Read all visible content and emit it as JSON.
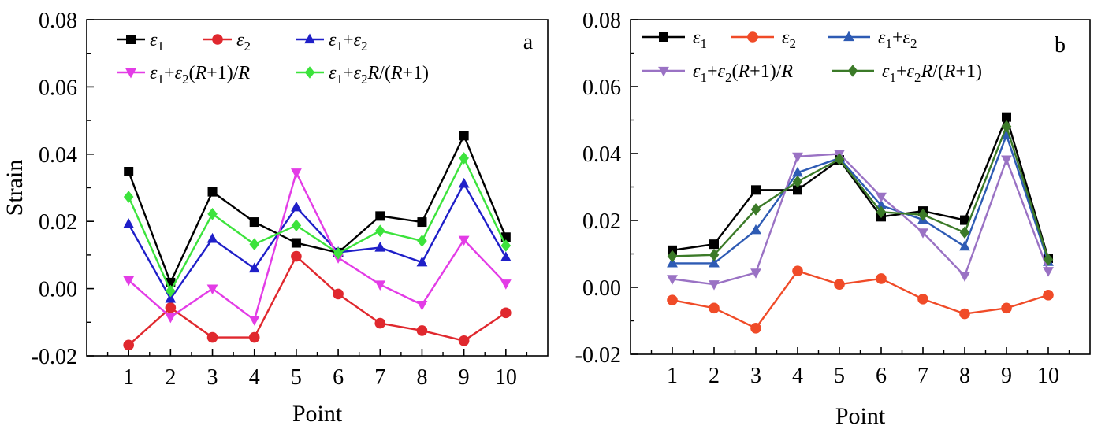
{
  "chart_data": [
    {
      "type": "line",
      "panel_label": "a",
      "xlabel": "Point",
      "ylabel": "Strain",
      "ylim": [
        -0.02,
        0.08
      ],
      "x": [
        1,
        2,
        3,
        4,
        5,
        6,
        7,
        8,
        9,
        10
      ],
      "x_tick_labels": [
        "1",
        "2",
        "3",
        "4",
        "5",
        "6",
        "7",
        "8",
        "9",
        "10"
      ],
      "y_ticks": [
        -0.02,
        0.0,
        0.02,
        0.04,
        0.06,
        0.08
      ],
      "y_tick_labels": [
        "-0.02",
        "0.00",
        "0.02",
        "0.04",
        "0.06",
        "0.08"
      ],
      "legend_position": "top-left",
      "series": [
        {
          "name": "ε1",
          "color": "#000000",
          "marker": "square",
          "legend": {
            "base": "ε",
            "sub": "1",
            "tail": ""
          },
          "values": [
            0.0348,
            0.0018,
            0.0288,
            0.0198,
            0.0136,
            0.0107,
            0.0216,
            0.0198,
            0.0455,
            0.0153
          ]
        },
        {
          "name": "ε2",
          "color": "#e0282e",
          "marker": "circle",
          "legend": {
            "base": "ε",
            "sub": "2",
            "tail": ""
          },
          "values": [
            -0.0168,
            -0.0057,
            -0.0145,
            -0.0145,
            0.0096,
            -0.0016,
            -0.0103,
            -0.0125,
            -0.0155,
            -0.0072
          ]
        },
        {
          "name": "ε1+ε2",
          "color": "#1f1fc8",
          "marker": "triangle-up",
          "legend": {
            "base": "ε",
            "sub": "1",
            "tail": "+ε",
            "sub2": "2",
            "tail2": ""
          },
          "values": [
            0.0192,
            -0.003,
            0.0148,
            0.006,
            0.0242,
            0.0108,
            0.0122,
            0.0078,
            0.0312,
            0.0093
          ]
        },
        {
          "name": "ε1+ε2(R+1)/R",
          "color": "#e33ce6",
          "marker": "triangle-down",
          "legend": {
            "base": "ε",
            "sub": "1",
            "tail": "+ε",
            "sub2": "2",
            "tail2": "(R+1)/R"
          },
          "values": [
            0.0025,
            -0.0085,
            0.0,
            -0.0093,
            0.0345,
            0.0092,
            0.0012,
            -0.0048,
            0.0145,
            0.0015
          ]
        },
        {
          "name": "ε1+ε2R/(R+1)",
          "color": "#3ce33c",
          "marker": "diamond",
          "legend": {
            "base": "ε",
            "sub": "1",
            "tail": "+ε",
            "sub2": "2",
            "tail2": "R/(R+1)"
          },
          "values": [
            0.0273,
            -0.0007,
            0.0222,
            0.0132,
            0.0188,
            0.0105,
            0.0172,
            0.0142,
            0.0388,
            0.0128
          ]
        }
      ]
    },
    {
      "type": "line",
      "panel_label": "b",
      "xlabel": "Point",
      "ylabel": "",
      "ylim": [
        -0.02,
        0.08
      ],
      "x": [
        1,
        2,
        3,
        4,
        5,
        6,
        7,
        8,
        9,
        10
      ],
      "x_tick_labels": [
        "1",
        "2",
        "3",
        "4",
        "5",
        "6",
        "7",
        "8",
        "9",
        "10"
      ],
      "y_ticks": [
        -0.02,
        0.0,
        0.02,
        0.04,
        0.06,
        0.08
      ],
      "y_tick_labels": [
        "-0.02",
        "0.00",
        "0.02",
        "0.04",
        "0.06",
        "0.08"
      ],
      "legend_position": "top-left",
      "series": [
        {
          "name": "ε1",
          "color": "#000000",
          "marker": "square",
          "legend": {
            "base": "ε",
            "sub": "1",
            "tail": ""
          },
          "values": [
            0.0111,
            0.0129,
            0.0291,
            0.0291,
            0.0381,
            0.0211,
            0.0228,
            0.0201,
            0.0509,
            0.0087
          ]
        },
        {
          "name": "ε2",
          "color": "#f04b28",
          "marker": "circle",
          "legend": {
            "base": "ε",
            "sub": "2",
            "tail": ""
          },
          "values": [
            -0.0038,
            -0.0062,
            -0.0122,
            0.0049,
            0.0009,
            0.0026,
            -0.0035,
            -0.0079,
            -0.0062,
            -0.0023
          ]
        },
        {
          "name": "ε1+ε2",
          "color": "#2e5bb4",
          "marker": "triangle-up",
          "legend": {
            "base": "ε",
            "sub": "1",
            "tail": "+ε",
            "sub2": "2",
            "tail2": ""
          },
          "values": [
            0.0072,
            0.0072,
            0.0171,
            0.0343,
            0.0386,
            0.0245,
            0.0202,
            0.0122,
            0.0455,
            0.0076
          ]
        },
        {
          "name": "ε1+ε2(R+1)/R",
          "color": "#9a72c4",
          "marker": "triangle-down",
          "legend": {
            "base": "ε",
            "sub": "1",
            "tail": "+ε",
            "sub2": "2",
            "tail2": "(R+1)/R"
          },
          "values": [
            0.0025,
            0.0009,
            0.0044,
            0.0391,
            0.0399,
            0.0271,
            0.0164,
            0.0034,
            0.0382,
            0.0049
          ]
        },
        {
          "name": "ε1+ε2R/(R+1)",
          "color": "#3b7a28",
          "marker": "diamond",
          "legend": {
            "base": "ε",
            "sub": "1",
            "tail": "+ε",
            "sub2": "2",
            "tail2": "R/(R+1)"
          },
          "values": [
            0.0093,
            0.0097,
            0.0233,
            0.0316,
            0.0383,
            0.0225,
            0.0217,
            0.0164,
            0.0481,
            0.0083
          ]
        }
      ]
    }
  ]
}
